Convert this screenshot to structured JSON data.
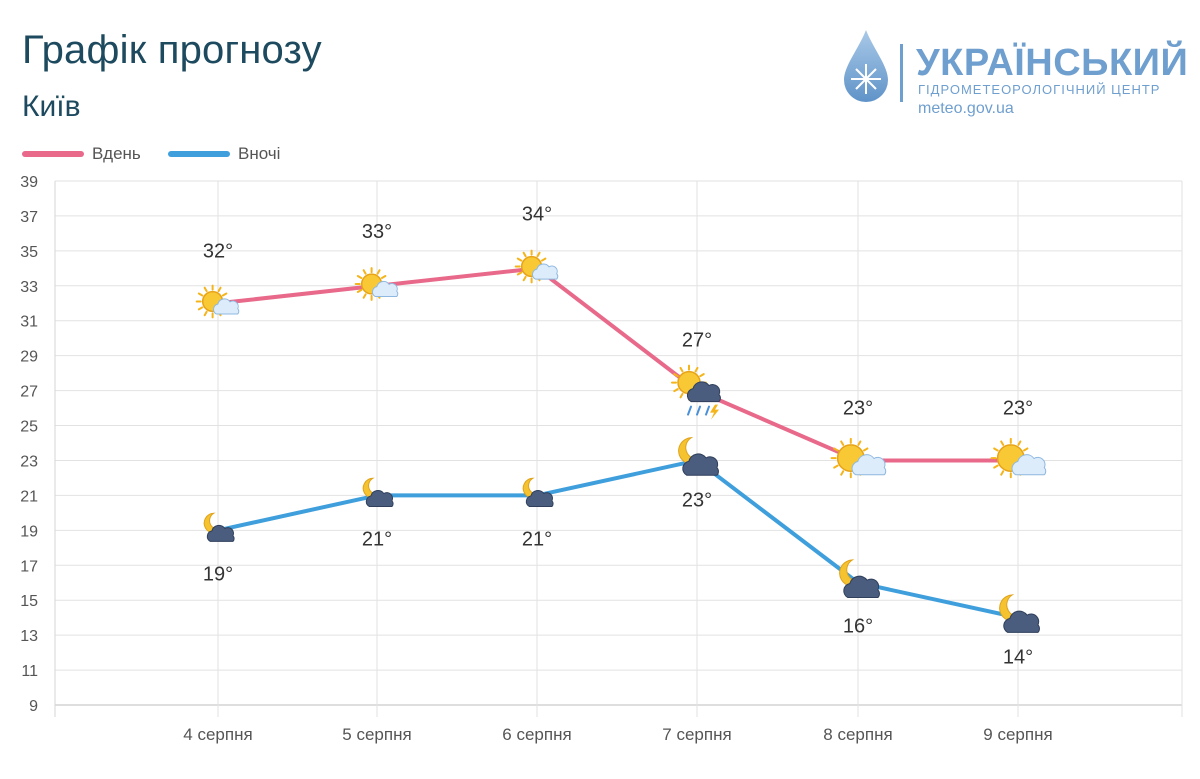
{
  "title": "Графік прогнозу",
  "subtitle": "Київ",
  "logo": {
    "name": "УКРАЇНСЬКИЙ",
    "center": "ГІДРОМЕТЕОРОЛОГІЧНИЙ ЦЕНТР",
    "site": "meteo.gov.ua",
    "color": "#6f9fcf"
  },
  "chart_data": {
    "type": "line",
    "categories": [
      "4 серпня",
      "5 серпня",
      "6 серпня",
      "7 серпня",
      "8 серпня",
      "9 серпня"
    ],
    "series": [
      {
        "name": "Вдень",
        "color": "#e8698a",
        "values": [
          32,
          33,
          34,
          27,
          23,
          23
        ],
        "labels": [
          "32°",
          "33°",
          "34°",
          "27°",
          "23°",
          "23°"
        ],
        "icons": [
          "sun-cloud-icon",
          "sun-cloud-icon",
          "sun-cloud-icon",
          "thunderstorm-icon",
          "sun-cloud-icon",
          "sun-cloud-icon"
        ]
      },
      {
        "name": "Вночі",
        "color": "#3f9fdc",
        "values": [
          19,
          21,
          21,
          23,
          16,
          14
        ],
        "labels": [
          "19°",
          "21°",
          "21°",
          "23°",
          "16°",
          "14°"
        ],
        "icons": [
          "moon-cloud-icon",
          "moon-cloud-icon",
          "moon-cloud-icon",
          "moon-cloud-icon",
          "moon-cloud-icon",
          "moon-cloud-icon"
        ]
      }
    ],
    "ylim": [
      9,
      39
    ],
    "yticks": [
      "39",
      "37",
      "35",
      "33",
      "31",
      "29",
      "27",
      "25",
      "23",
      "21",
      "19",
      "17",
      "15",
      "13",
      "11",
      "9"
    ],
    "grid": true,
    "legend": "top-left"
  }
}
